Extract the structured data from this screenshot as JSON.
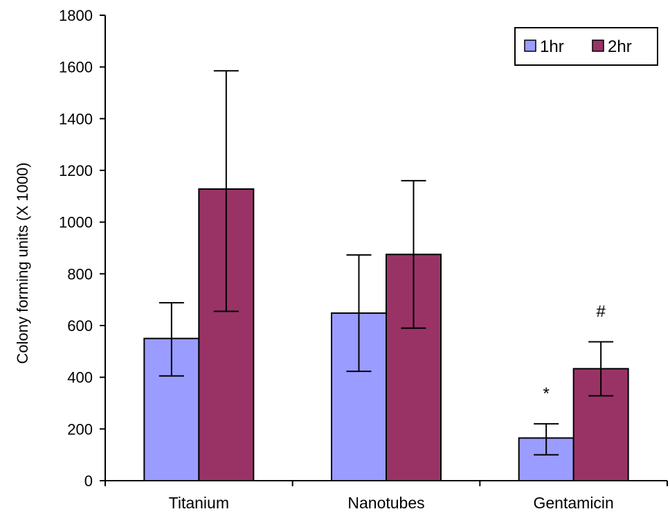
{
  "chart_data": {
    "type": "bar",
    "categories": [
      "Titanium",
      "Nanotubes",
      "Gentamicin"
    ],
    "series": [
      {
        "name": "1hr",
        "color": "#9a9cff",
        "values": [
          550,
          648,
          165
        ],
        "error_low": [
          405,
          423,
          100
        ],
        "error_high": [
          688,
          873,
          220
        ]
      },
      {
        "name": "2hr",
        "color": "#993366",
        "values": [
          1128,
          875,
          433
        ],
        "error_low": [
          655,
          590,
          328
        ],
        "error_high": [
          1585,
          1160,
          537
        ]
      }
    ],
    "xlabel": "",
    "ylabel": "Colony forming units (X 1000)",
    "ylim": [
      0,
      1800
    ],
    "yticks": [
      0,
      200,
      400,
      600,
      800,
      1000,
      1200,
      1400,
      1600,
      1800
    ],
    "grid": false,
    "legend_position": "top-right",
    "annotations": [
      {
        "text": "*",
        "category": "Gentamicin",
        "series": "1hr"
      },
      {
        "text": "#",
        "category": "Gentamicin",
        "series": "2hr"
      }
    ]
  }
}
